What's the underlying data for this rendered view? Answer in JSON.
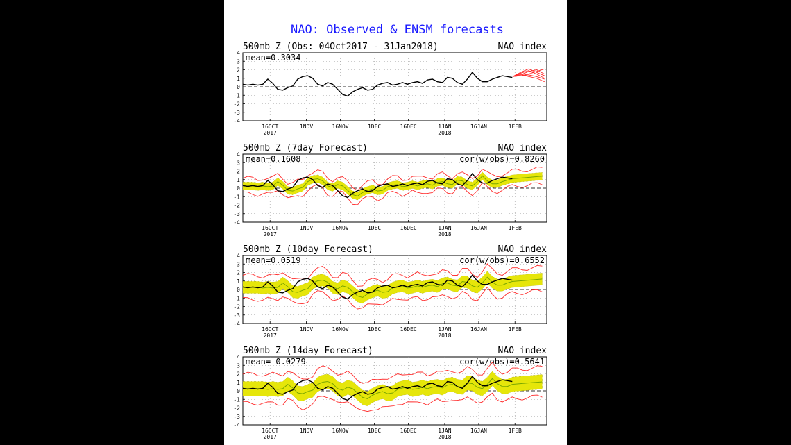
{
  "title": "NAO: Observed & ENSM forecasts",
  "colors": {
    "title": "#1a1aff",
    "observed": "#000000",
    "member": "#ff2a2a",
    "spread": "#e6e60a",
    "spread_dots": "#9a9a00",
    "zero_line": "#333333",
    "background": "#000000",
    "paper": "#ffffff"
  },
  "panels": [
    {
      "heading": "500mb Z (Obs: 04Oct2017 - 31Jan2018)",
      "right_label": "NAO index",
      "mean_text": "mean=0.3034",
      "cor_text": ""
    },
    {
      "heading": "500mb Z (7day Forecast)",
      "right_label": "NAO index",
      "mean_text": "mean=0.1608",
      "cor_text": "cor(w/obs)=0.8260"
    },
    {
      "heading": "500mb Z (10day Forecast)",
      "right_label": "NAO index",
      "mean_text": "mean=0.0519",
      "cor_text": "cor(w/obs)=0.6552"
    },
    {
      "heading": "500mb Z (14day Forecast)",
      "right_label": "NAO index",
      "mean_text": "mean=-0.0279",
      "cor_text": "cor(w/obs)=0.5641"
    }
  ],
  "chart_data": {
    "type": "line",
    "x_ticks": [
      {
        "date": "2017-10-16",
        "label": "16OCT",
        "year": "2017"
      },
      {
        "date": "2017-11-01",
        "label": "1NOV",
        "year": ""
      },
      {
        "date": "2017-11-16",
        "label": "16NOV",
        "year": ""
      },
      {
        "date": "2017-12-01",
        "label": "1DEC",
        "year": ""
      },
      {
        "date": "2017-12-16",
        "label": "16DEC",
        "year": ""
      },
      {
        "date": "2018-01-01",
        "label": "1JAN",
        "year": "2018"
      },
      {
        "date": "2018-01-16",
        "label": "16JAN",
        "year": ""
      },
      {
        "date": "2018-02-01",
        "label": "1FEB",
        "year": ""
      }
    ],
    "xlim": [
      "2017-10-04",
      "2018-02-15"
    ],
    "ylim": [
      -4,
      4
    ],
    "y_ticks": [
      -4,
      -3,
      -2,
      -1,
      0,
      1,
      2,
      3,
      4
    ],
    "observed": {
      "start": "2017-10-04",
      "values": [
        0.3,
        0.2,
        0.3,
        0.2,
        0.3,
        0.9,
        0.4,
        -0.3,
        -0.4,
        -0.1,
        0.1,
        0.9,
        1.2,
        1.3,
        1.0,
        0.3,
        0.1,
        0.5,
        0.3,
        -0.3,
        -0.9,
        -1.1,
        -0.6,
        -0.3,
        -0.1,
        -0.4,
        -0.3,
        0.2,
        0.4,
        0.5,
        0.2,
        0.3,
        0.5,
        0.3,
        0.5,
        0.6,
        0.4,
        0.8,
        0.9,
        0.6,
        0.5,
        1.1,
        1.0,
        0.5,
        0.3,
        0.9,
        1.7,
        1.0,
        0.6,
        0.6,
        0.9,
        1.1,
        1.3,
        1.2,
        1.1
      ],
      "step_days": 2.2
    },
    "ens_forecast": {
      "start": "2018-01-31",
      "end": "2018-02-14",
      "members": [
        [
          1.2,
          1.4,
          1.8,
          2.0,
          1.5
        ],
        [
          1.2,
          1.6,
          1.9,
          1.5,
          1.0
        ],
        [
          1.2,
          1.3,
          1.5,
          1.8,
          2.1
        ],
        [
          1.2,
          1.5,
          1.2,
          1.0,
          0.6
        ],
        [
          1.2,
          1.7,
          2.1,
          1.7,
          1.3
        ],
        [
          1.2,
          1.3,
          1.4,
          1.2,
          0.9
        ]
      ]
    },
    "lead_spread": [
      {
        "lead": "7day",
        "half_width": 0.45,
        "member_offset": 0.9
      },
      {
        "lead": "10day",
        "half_width": 0.7,
        "member_offset": 1.4
      },
      {
        "lead": "14day",
        "half_width": 0.85,
        "member_offset": 1.7
      }
    ]
  }
}
